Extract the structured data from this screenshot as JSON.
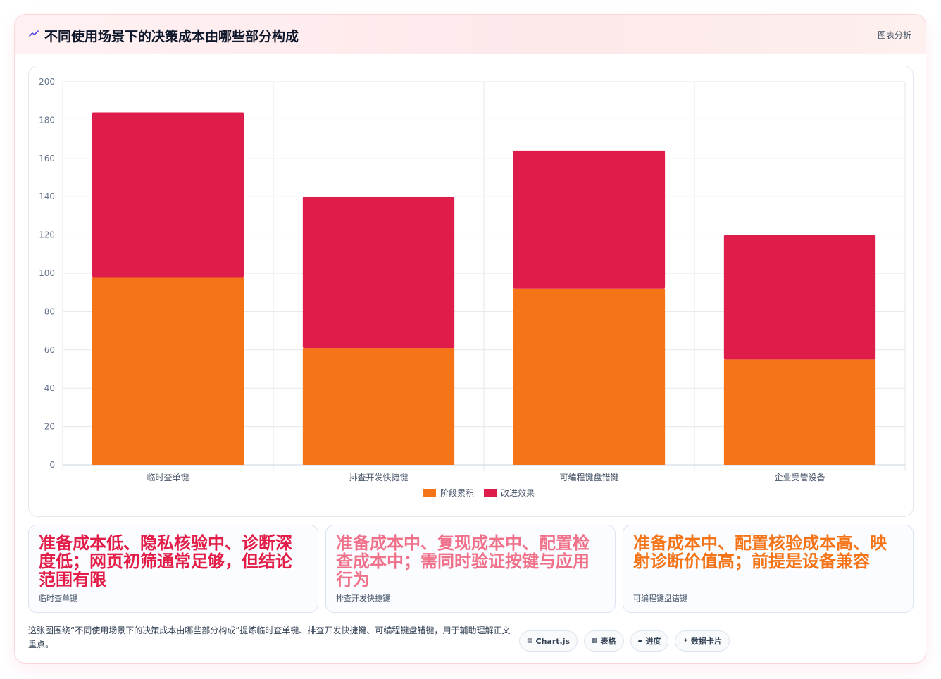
{
  "header": {
    "icon": "trend-icon",
    "title": "不同使用场景下的决策成本由哪些部分构成",
    "action": "图表分析"
  },
  "colors": {
    "series_a": "#f57418",
    "series_b": "#df1d4a",
    "callout_1": "#e11d48",
    "callout_2": "#f0728a",
    "callout_3": "#f57418"
  },
  "chart_data": {
    "type": "bar",
    "stacked": true,
    "categories": [
      "临时查单键",
      "排查开发快捷键",
      "可编程键盘错键",
      "企业受管设备"
    ],
    "series": [
      {
        "name": "阶段累积",
        "values": [
          98,
          61,
          92,
          55
        ]
      },
      {
        "name": "改进效果",
        "values": [
          86,
          79,
          72,
          65
        ]
      }
    ],
    "ylim": [
      0,
      200
    ],
    "yticks": [
      0,
      20,
      40,
      60,
      80,
      100,
      120,
      140,
      160,
      180,
      200
    ],
    "grid": true,
    "legend": "bottom"
  },
  "callouts": [
    {
      "text": "准备成本低、隐私核验中、诊断深度低；网页初筛通常足够，但结论范围有限",
      "category": "临时查单键"
    },
    {
      "text": "准备成本中、复现成本中、配置检查成本中；需同时验证按键与应用行为",
      "category": "排查开发快捷键"
    },
    {
      "text": "准备成本中、配置核验成本高、映射诊断价值高；前提是设备兼容",
      "category": "可编程键盘错键"
    }
  ],
  "footer": {
    "text": "这张图围绕“不同使用场景下的决策成本由哪些部分构成”提炼临时查单键、排查开发快捷键、可编程键盘错键，用于辅助理解正文重点。",
    "pills": [
      {
        "icon": "▤",
        "label": "Chart.js"
      },
      {
        "icon": "▦",
        "label": "表格"
      },
      {
        "icon": "▰",
        "label": "进度"
      },
      {
        "icon": "✦",
        "label": "数据卡片"
      }
    ]
  }
}
